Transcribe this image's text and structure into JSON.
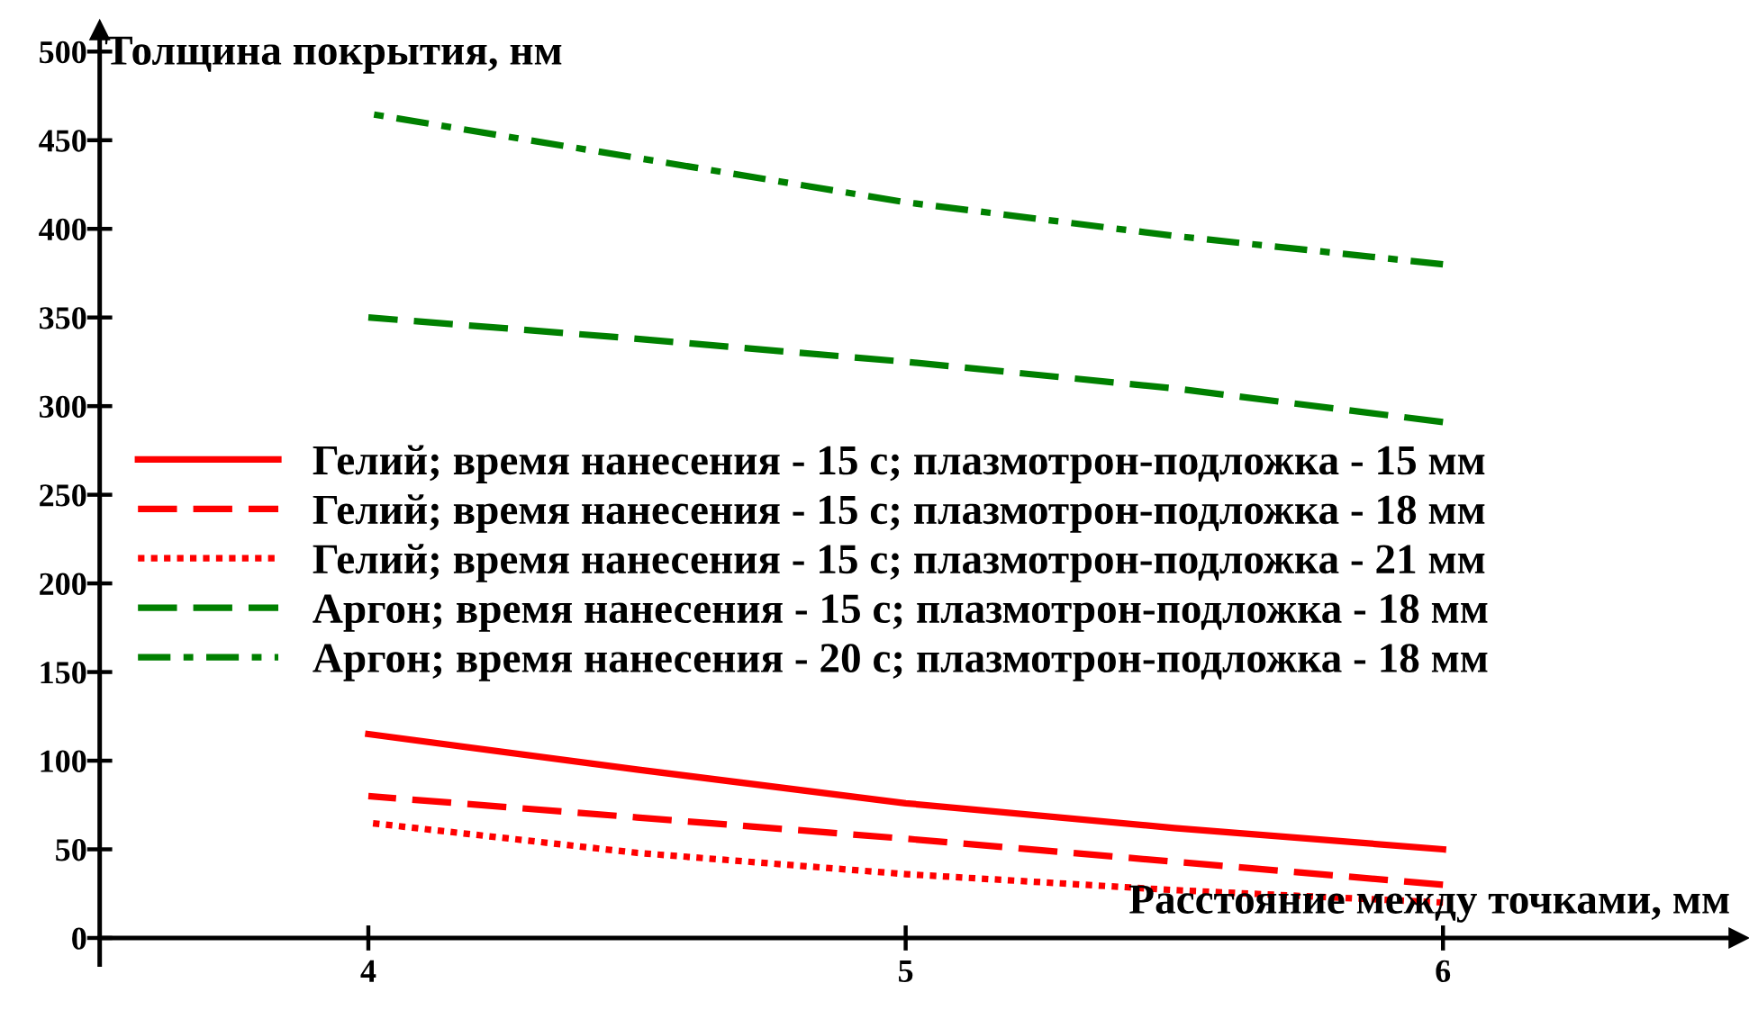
{
  "chart_data": {
    "type": "line",
    "xlabel": "Расстояние между точками, мм",
    "ylabel": "Толщина покрытия, нм",
    "x": [
      4,
      4.5,
      5,
      5.5,
      6
    ],
    "series": [
      {
        "name": "Гелий; время нанесения - 15 с; плазмотрон-подложка - 15 мм",
        "color": "#ff0000",
        "line_style": "solid",
        "values": [
          115,
          95,
          76,
          62,
          50
        ]
      },
      {
        "name": "Гелий; время нанесения - 15 с; плазмотрон-подложка - 18 мм",
        "color": "#ff0000",
        "line_style": "dashed",
        "values": [
          80,
          68,
          56,
          43,
          30
        ]
      },
      {
        "name": "Гелий; время нанесения - 15 с; плазмотрон-подложка - 21 мм",
        "color": "#ff0000",
        "line_style": "dotted",
        "values": [
          65,
          48,
          36,
          27,
          20
        ]
      },
      {
        "name": "Аргон; время нанесения - 15 с; плазмотрон-подложка - 18 мм",
        "color": "#008000",
        "line_style": "dashed",
        "values": [
          350,
          338,
          325,
          310,
          291
        ]
      },
      {
        "name": "Аргон; время нанесения - 20 с; плазмотрон-подложка - 18 мм",
        "color": "#008000",
        "line_style": "dashdot",
        "values": [
          465,
          440,
          415,
          396,
          380
        ]
      }
    ],
    "xlim": [
      3.5,
      6.55
    ],
    "ylim": [
      -15,
      512
    ],
    "xticks": [
      4,
      5,
      6
    ],
    "yticks": [
      0,
      50,
      100,
      150,
      200,
      250,
      300,
      350,
      400,
      450,
      500
    ],
    "grid": false,
    "legend": "left",
    "marker": "none"
  }
}
